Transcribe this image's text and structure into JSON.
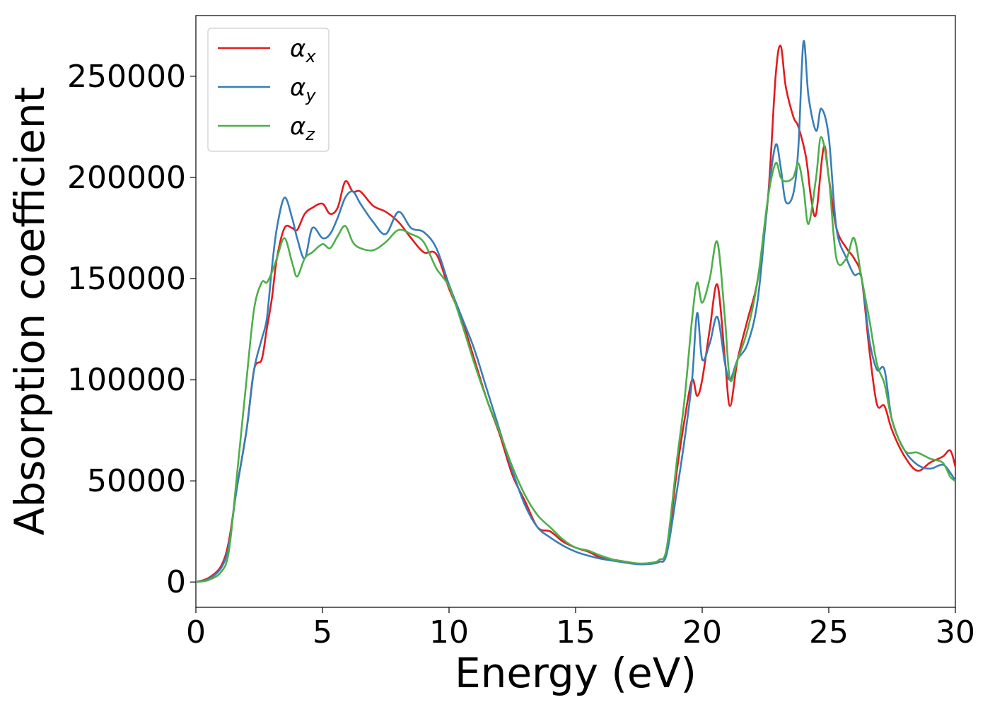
{
  "chart_data": {
    "type": "line",
    "title": "",
    "xlabel": "Energy (eV)",
    "ylabel": "Absorption coefficient",
    "xlim": [
      0,
      30
    ],
    "ylim": [
      -12500,
      280000
    ],
    "xticks": [
      0,
      5,
      10,
      15,
      20,
      25,
      30
    ],
    "yticks": [
      0,
      50000,
      100000,
      150000,
      200000,
      250000
    ],
    "grid": false,
    "legend": {
      "position": "top-left"
    },
    "series": [
      {
        "name": "α_x",
        "label_base": "α",
        "label_sub": "x",
        "color": "#e41a1c",
        "x": [
          0,
          0.5,
          1.0,
          1.3,
          1.6,
          2.0,
          2.3,
          2.6,
          2.8,
          3.0,
          3.2,
          3.5,
          3.8,
          4.0,
          4.3,
          4.6,
          5.0,
          5.3,
          5.6,
          5.9,
          6.2,
          6.5,
          7.0,
          7.5,
          8.0,
          8.5,
          9.0,
          9.5,
          10.0,
          10.5,
          11.0,
          11.5,
          12.0,
          12.5,
          13.0,
          13.5,
          14.0,
          14.5,
          15.0,
          15.5,
          16.0,
          16.5,
          17.0,
          17.5,
          18.0,
          18.3,
          18.6,
          19.0,
          19.3,
          19.6,
          19.8,
          20.0,
          20.3,
          20.6,
          20.9,
          21.1,
          21.4,
          21.8,
          22.2,
          22.6,
          22.9,
          23.1,
          23.3,
          23.6,
          23.8,
          24.1,
          24.3,
          24.5,
          24.8,
          25.0,
          25.3,
          25.7,
          26.0,
          26.3,
          26.6,
          26.9,
          27.2,
          27.5,
          28.0,
          28.5,
          29.0,
          29.5,
          29.8,
          30.0
        ],
        "y": [
          0,
          2000,
          8000,
          20000,
          45000,
          75000,
          105000,
          110000,
          125000,
          140000,
          160000,
          175000,
          175000,
          174000,
          182000,
          185000,
          187000,
          182000,
          185000,
          198000,
          193000,
          193000,
          186000,
          183000,
          178000,
          170000,
          163000,
          162000,
          145000,
          130000,
          110000,
          90000,
          73000,
          53000,
          40000,
          27000,
          25000,
          20000,
          17000,
          15000,
          12000,
          11000,
          10000,
          9000,
          9500,
          10000,
          15000,
          55000,
          80000,
          100000,
          92000,
          100000,
          125000,
          147000,
          110000,
          87000,
          110000,
          130000,
          150000,
          190000,
          250000,
          265000,
          245000,
          230000,
          225000,
          210000,
          190000,
          182000,
          215000,
          200000,
          175000,
          165000,
          160000,
          150000,
          115000,
          88000,
          87000,
          75000,
          62000,
          55000,
          59000,
          62000,
          65000,
          57000
        ]
      },
      {
        "name": "α_y",
        "label_base": "α",
        "label_sub": "y",
        "color": "#377eb8",
        "x": [
          0,
          0.5,
          1.0,
          1.3,
          1.6,
          2.0,
          2.3,
          2.6,
          2.8,
          3.0,
          3.2,
          3.5,
          3.8,
          4.0,
          4.3,
          4.6,
          5.0,
          5.3,
          5.6,
          5.9,
          6.2,
          6.5,
          7.0,
          7.5,
          8.0,
          8.5,
          9.0,
          9.5,
          10.0,
          10.5,
          11.0,
          11.5,
          12.0,
          12.5,
          13.0,
          13.5,
          14.0,
          14.5,
          15.0,
          15.5,
          16.0,
          16.5,
          17.0,
          17.5,
          18.0,
          18.3,
          18.6,
          19.0,
          19.3,
          19.6,
          19.8,
          20.0,
          20.3,
          20.6,
          20.9,
          21.1,
          21.4,
          21.8,
          22.2,
          22.6,
          22.9,
          23.1,
          23.3,
          23.6,
          23.8,
          24.0,
          24.2,
          24.5,
          24.7,
          25.0,
          25.3,
          25.7,
          26.0,
          26.3,
          26.6,
          26.9,
          27.2,
          27.5,
          28.0,
          28.5,
          29.0,
          29.5,
          29.8,
          30.0
        ],
        "y": [
          0,
          1500,
          7000,
          18000,
          45000,
          75000,
          105000,
          120000,
          130000,
          155000,
          175000,
          190000,
          180000,
          170000,
          160000,
          175000,
          170000,
          172000,
          180000,
          190000,
          193000,
          187000,
          178000,
          172000,
          183000,
          175000,
          173000,
          165000,
          147000,
          131000,
          115000,
          95000,
          75000,
          55000,
          38000,
          27000,
          22000,
          18000,
          15000,
          13000,
          11500,
          10500,
          9500,
          8800,
          9000,
          10000,
          14000,
          45000,
          70000,
          100000,
          133000,
          110000,
          118000,
          131000,
          108000,
          100000,
          110000,
          118000,
          140000,
          190000,
          216000,
          205000,
          188000,
          192000,
          215000,
          267000,
          240000,
          223000,
          234000,
          220000,
          175000,
          160000,
          152000,
          150000,
          120000,
          105000,
          105000,
          80000,
          65000,
          58000,
          56000,
          58000,
          54000,
          50000
        ]
      },
      {
        "name": "α_z",
        "label_base": "α",
        "label_sub": "z",
        "color": "#4daf4a",
        "x": [
          0,
          0.5,
          1.0,
          1.3,
          1.6,
          2.0,
          2.3,
          2.6,
          2.8,
          3.0,
          3.2,
          3.5,
          3.8,
          4.0,
          4.3,
          4.6,
          5.0,
          5.3,
          5.6,
          5.9,
          6.2,
          6.5,
          7.0,
          7.5,
          8.0,
          8.5,
          9.0,
          9.5,
          10.0,
          10.5,
          11.0,
          11.5,
          12.0,
          12.5,
          13.0,
          13.5,
          14.0,
          14.5,
          15.0,
          15.5,
          16.0,
          16.5,
          17.0,
          17.5,
          18.0,
          18.3,
          18.6,
          19.0,
          19.3,
          19.6,
          19.8,
          20.0,
          20.3,
          20.6,
          20.9,
          21.1,
          21.4,
          21.8,
          22.2,
          22.6,
          22.9,
          23.1,
          23.3,
          23.6,
          23.8,
          24.0,
          24.2,
          24.5,
          24.7,
          25.0,
          25.3,
          25.7,
          26.0,
          26.3,
          26.6,
          26.9,
          27.2,
          27.5,
          28.0,
          28.5,
          29.0,
          29.5,
          29.8,
          30.0
        ],
        "y": [
          0,
          1000,
          5000,
          15000,
          50000,
          100000,
          135000,
          148000,
          148000,
          153000,
          160000,
          170000,
          158000,
          151000,
          160000,
          163000,
          167000,
          165000,
          171000,
          176000,
          168000,
          165000,
          164000,
          168000,
          174000,
          172000,
          168000,
          155000,
          146000,
          128000,
          108000,
          90000,
          74000,
          57000,
          43000,
          33000,
          27000,
          21000,
          17000,
          15500,
          13000,
          11000,
          10000,
          9200,
          9500,
          11000,
          17000,
          60000,
          90000,
          130000,
          148000,
          138000,
          150000,
          168000,
          130000,
          100000,
          110000,
          125000,
          150000,
          190000,
          207000,
          200000,
          198000,
          200000,
          207000,
          195000,
          177000,
          200000,
          220000,
          200000,
          160000,
          160000,
          170000,
          150000,
          130000,
          108000,
          98000,
          80000,
          65000,
          64000,
          61000,
          59000,
          52000,
          50000
        ]
      }
    ]
  }
}
